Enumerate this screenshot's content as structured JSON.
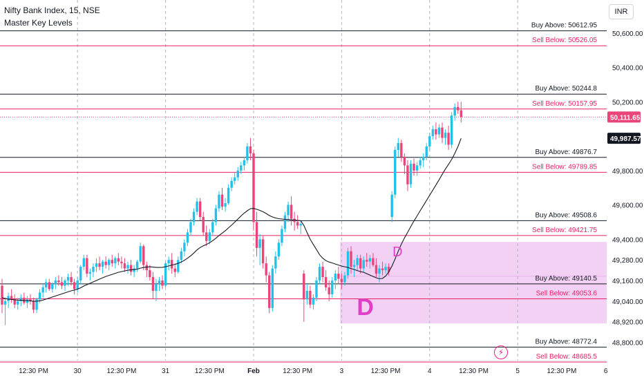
{
  "header": {
    "title": "Nifty Bank Index, 15, NSE",
    "indicator": "Master Key Levels"
  },
  "currency_badge": "INR",
  "alert_icon": "lightning-icon",
  "zone_labels": {
    "small": "D",
    "large": "D"
  },
  "colors": {
    "up": "#22c1e8",
    "down": "#e9457b",
    "buy_line": "#131722",
    "sell_line": "#e91e63",
    "zone": "#f3d1f4",
    "zone_text": "#e040c8",
    "ma": "#131722",
    "grid": "#b2b5be",
    "price_tag": "#e9457b",
    "ma_tag": "#131722"
  },
  "chart_data": {
    "type": "candlestick",
    "ylim": [
      48750,
      50720
    ],
    "y_ticks": [
      "50,600.00",
      "50,400.00",
      "50,200.00",
      "49,800.00",
      "49,600.00",
      "49,400.00",
      "49,280.00",
      "49,160.00",
      "49,040.00",
      "48,920.00",
      "48,800.00"
    ],
    "y_tick_values": [
      50600,
      50400,
      50200,
      49800,
      49600,
      49400,
      49280,
      49160,
      49040,
      48920,
      48800
    ],
    "x_ticks": [
      "12:30 PM",
      "30",
      "12:30 PM",
      "31",
      "12:30 PM",
      "Feb",
      "12:30 PM",
      "3",
      "12:30 PM",
      "4",
      "12:30 PM",
      "5",
      "12:30 PM",
      "6"
    ],
    "x_tick_bars": [
      10,
      24,
      38,
      52,
      66,
      80,
      94,
      108,
      122,
      136,
      150,
      164,
      178,
      192
    ],
    "day_separator_bars": [
      24,
      52,
      80,
      108,
      136,
      164
    ],
    "levels": [
      {
        "label": "Buy Above: 50612.95",
        "value": 50612.95,
        "kind": "buy"
      },
      {
        "label": "Sell Below: 50526.05",
        "value": 50526.05,
        "kind": "sell"
      },
      {
        "label": "Buy Above: 50244.8",
        "value": 50244.8,
        "kind": "buy"
      },
      {
        "label": "Sell Below: 50157.95",
        "value": 50157.95,
        "kind": "sell"
      },
      {
        "label": "Buy Above: 49876.7",
        "value": 49876.7,
        "kind": "buy"
      },
      {
        "label": "Sell Below: 49789.85",
        "value": 49789.85,
        "kind": "sell"
      },
      {
        "label": "Buy Above: 49508.6",
        "value": 49508.6,
        "kind": "buy"
      },
      {
        "label": "Sell Below: 49421.75",
        "value": 49421.75,
        "kind": "sell"
      },
      {
        "label": "Buy Above: 49140.5",
        "value": 49140.5,
        "kind": "buy"
      },
      {
        "label": "Sell Below: 49053.6",
        "value": 49053.6,
        "kind": "sell"
      },
      {
        "label": "Buy Above: 48772.4",
        "value": 48772.4,
        "kind": "buy"
      },
      {
        "label": "Sell Below: 48685.5",
        "value": 48685.5,
        "kind": "sell"
      }
    ],
    "zone": {
      "from_bar": 108,
      "to_bar": 196,
      "y_low": 48910,
      "y_high": 49385
    },
    "zone_divider": 49185,
    "last_price": {
      "label": "50,111.65",
      "value": 50111.65
    },
    "ma_value": {
      "label": "49,987.57",
      "value": 49987.57
    },
    "candles": [
      [
        49130,
        49170,
        48970,
        49020
      ],
      [
        49020,
        49060,
        48900,
        49040
      ],
      [
        49040,
        49090,
        49000,
        49070
      ],
      [
        49070,
        49110,
        49030,
        49050
      ],
      [
        49050,
        49080,
        49000,
        49020
      ],
      [
        49020,
        49060,
        48990,
        49040
      ],
      [
        49040,
        49080,
        49010,
        49060
      ],
      [
        49060,
        49090,
        49020,
        49030
      ],
      [
        49030,
        49070,
        49000,
        49050
      ],
      [
        49050,
        49080,
        49020,
        49040
      ],
      [
        49040,
        49060,
        48970,
        48990
      ],
      [
        48990,
        49060,
        48970,
        49050
      ],
      [
        49050,
        49110,
        49030,
        49090
      ],
      [
        49090,
        49140,
        49060,
        49120
      ],
      [
        49120,
        49170,
        49090,
        49150
      ],
      [
        49150,
        49170,
        49100,
        49110
      ],
      [
        49110,
        49150,
        49090,
        49140
      ],
      [
        49140,
        49180,
        49110,
        49160
      ],
      [
        49160,
        49190,
        49130,
        49150
      ],
      [
        49150,
        49180,
        49110,
        49130
      ],
      [
        49130,
        49170,
        49100,
        49160
      ],
      [
        49160,
        49200,
        49130,
        49180
      ],
      [
        49180,
        49210,
        49130,
        49150
      ],
      [
        49150,
        49170,
        49080,
        49110
      ],
      [
        49110,
        49180,
        49090,
        49160
      ],
      [
        49160,
        49250,
        49140,
        49240
      ],
      [
        49240,
        49310,
        49220,
        49290
      ],
      [
        49290,
        49310,
        49180,
        49200
      ],
      [
        49200,
        49230,
        49160,
        49210
      ],
      [
        49210,
        49260,
        49180,
        49240
      ],
      [
        49240,
        49290,
        49210,
        49260
      ],
      [
        49260,
        49300,
        49220,
        49240
      ],
      [
        49240,
        49280,
        49200,
        49270
      ],
      [
        49270,
        49300,
        49230,
        49250
      ],
      [
        49250,
        49290,
        49220,
        49280
      ],
      [
        49280,
        49310,
        49240,
        49260
      ],
      [
        49260,
        49300,
        49230,
        49290
      ],
      [
        49290,
        49320,
        49250,
        49270
      ],
      [
        49270,
        49300,
        49230,
        49260
      ],
      [
        49260,
        49290,
        49210,
        49230
      ],
      [
        49230,
        49270,
        49200,
        49250
      ],
      [
        49250,
        49280,
        49190,
        49210
      ],
      [
        49210,
        49250,
        49180,
        49230
      ],
      [
        49230,
        49280,
        49210,
        49270
      ],
      [
        49270,
        49380,
        49260,
        49360
      ],
      [
        49360,
        49370,
        49220,
        49250
      ],
      [
        49250,
        49270,
        49180,
        49220
      ],
      [
        49220,
        49250,
        49160,
        49180
      ],
      [
        49180,
        49210,
        49050,
        49100
      ],
      [
        49100,
        49170,
        49040,
        49140
      ],
      [
        49140,
        49180,
        49100,
        49160
      ],
      [
        49160,
        49190,
        49110,
        49130
      ],
      [
        49130,
        49270,
        49120,
        49260
      ],
      [
        49260,
        49300,
        49220,
        49280
      ],
      [
        49280,
        49320,
        49200,
        49230
      ],
      [
        49230,
        49260,
        49180,
        49210
      ],
      [
        49210,
        49300,
        49200,
        49280
      ],
      [
        49280,
        49350,
        49260,
        49330
      ],
      [
        49330,
        49400,
        49300,
        49380
      ],
      [
        49380,
        49460,
        49360,
        49440
      ],
      [
        49440,
        49520,
        49420,
        49500
      ],
      [
        49500,
        49580,
        49480,
        49560
      ],
      [
        49560,
        49640,
        49540,
        49620
      ],
      [
        49620,
        49640,
        49510,
        49530
      ],
      [
        49530,
        49560,
        49420,
        49440
      ],
      [
        49440,
        49480,
        49360,
        49390
      ],
      [
        49390,
        49460,
        49370,
        49440
      ],
      [
        49440,
        49520,
        49420,
        49500
      ],
      [
        49500,
        49600,
        49480,
        49580
      ],
      [
        49580,
        49680,
        49560,
        49660
      ],
      [
        49660,
        49700,
        49570,
        49590
      ],
      [
        49590,
        49640,
        49560,
        49610
      ],
      [
        49610,
        49720,
        49600,
        49700
      ],
      [
        49700,
        49760,
        49680,
        49740
      ],
      [
        49740,
        49790,
        49720,
        49760
      ],
      [
        49760,
        49820,
        49740,
        49800
      ],
      [
        49800,
        49850,
        49780,
        49830
      ],
      [
        49830,
        49880,
        49800,
        49860
      ],
      [
        49860,
        49960,
        49840,
        49940
      ],
      [
        49940,
        49990,
        49860,
        49900
      ],
      [
        49900,
        49920,
        49450,
        49500
      ],
      [
        49500,
        49560,
        49300,
        49350
      ],
      [
        49350,
        49430,
        49250,
        49400
      ],
      [
        49400,
        49420,
        49230,
        49260
      ],
      [
        49260,
        49300,
        49150,
        49190
      ],
      [
        49190,
        49210,
        48970,
        49000
      ],
      [
        49000,
        49250,
        48980,
        49230
      ],
      [
        49230,
        49330,
        49200,
        49300
      ],
      [
        49300,
        49400,
        49280,
        49380
      ],
      [
        49380,
        49480,
        49360,
        49460
      ],
      [
        49460,
        49560,
        49440,
        49540
      ],
      [
        49540,
        49620,
        49500,
        49600
      ],
      [
        49600,
        49650,
        49480,
        49520
      ],
      [
        49520,
        49560,
        49450,
        49500
      ],
      [
        49500,
        49540,
        49460,
        49480
      ],
      [
        49480,
        49510,
        49430,
        49490
      ],
      [
        49200,
        49220,
        48920,
        49050
      ],
      [
        49050,
        49140,
        49020,
        49100
      ],
      [
        49100,
        49130,
        49000,
        49020
      ],
      [
        49020,
        49080,
        48990,
        49060
      ],
      [
        49060,
        49180,
        49040,
        49160
      ],
      [
        49160,
        49260,
        49140,
        49240
      ],
      [
        49240,
        49270,
        49150,
        49180
      ],
      [
        49180,
        49220,
        49100,
        49120
      ],
      [
        49120,
        49160,
        49040,
        49080
      ],
      [
        49080,
        49180,
        49060,
        49160
      ],
      [
        49160,
        49220,
        49110,
        49200
      ],
      [
        49200,
        49240,
        49140,
        49170
      ],
      [
        49170,
        49200,
        49110,
        49150
      ],
      [
        49150,
        49210,
        49130,
        49190
      ],
      [
        49190,
        49350,
        49170,
        49330
      ],
      [
        49330,
        49360,
        49200,
        49240
      ],
      [
        49240,
        49280,
        49180,
        49250
      ],
      [
        49250,
        49310,
        49220,
        49290
      ],
      [
        49290,
        49310,
        49200,
        49230
      ],
      [
        49230,
        49300,
        49210,
        49280
      ],
      [
        49280,
        49320,
        49240,
        49270
      ],
      [
        49270,
        49310,
        49230,
        49290
      ],
      [
        49290,
        49320,
        49240,
        49250
      ],
      [
        49250,
        49290,
        49180,
        49200
      ],
      [
        49200,
        49250,
        49150,
        49230
      ],
      [
        49230,
        49270,
        49190,
        49220
      ],
      [
        49220,
        49260,
        49200,
        49240
      ],
      [
        49240,
        49260,
        49190,
        49210
      ],
      [
        49530,
        49680,
        49500,
        49660
      ],
      [
        49660,
        49940,
        49640,
        49920
      ],
      [
        49920,
        49990,
        49880,
        49960
      ],
      [
        49960,
        49980,
        49850,
        49880
      ],
      [
        49880,
        49900,
        49780,
        49830
      ],
      [
        49830,
        49860,
        49680,
        49720
      ],
      [
        49720,
        49860,
        49700,
        49840
      ],
      [
        49840,
        49870,
        49770,
        49800
      ],
      [
        49800,
        49850,
        49770,
        49830
      ],
      [
        49830,
        49880,
        49810,
        49860
      ],
      [
        49860,
        49900,
        49820,
        49880
      ],
      [
        49880,
        49960,
        49860,
        49940
      ],
      [
        49940,
        50020,
        49920,
        50000
      ],
      [
        50000,
        50060,
        49980,
        50040
      ],
      [
        50040,
        50080,
        49980,
        50010
      ],
      [
        50010,
        50070,
        49990,
        50050
      ],
      [
        50050,
        50080,
        49960,
        49990
      ],
      [
        49990,
        50040,
        49950,
        50020
      ],
      [
        50020,
        50060,
        49920,
        49950
      ],
      [
        49950,
        50140,
        49930,
        50120
      ],
      [
        50120,
        50190,
        50090,
        50170
      ],
      [
        50170,
        50200,
        50130,
        50150
      ],
      [
        50150,
        50200,
        50080,
        50111.65
      ]
    ],
    "ma": [
      49060,
      49055,
      49052,
      49050,
      49048,
      49046,
      49045,
      49044,
      49043,
      49042,
      49040,
      49040,
      49042,
      49046,
      49052,
      49058,
      49064,
      49070,
      49076,
      49082,
      49088,
      49094,
      49100,
      49104,
      49110,
      49118,
      49128,
      49136,
      49144,
      49152,
      49160,
      49168,
      49176,
      49184,
      49190,
      49196,
      49202,
      49208,
      49212,
      49216,
      49220,
      49222,
      49224,
      49226,
      49232,
      49236,
      49238,
      49240,
      49238,
      49236,
      49236,
      49237,
      49240,
      49245,
      49250,
      49254,
      49260,
      49268,
      49278,
      49290,
      49304,
      49320,
      49338,
      49352,
      49362,
      49370,
      49380,
      49392,
      49406,
      49422,
      49436,
      49450,
      49466,
      49482,
      49500,
      49518,
      49536,
      49552,
      49566,
      49578,
      49580,
      49574,
      49568,
      49560,
      49550,
      49538,
      49530,
      49524,
      49520,
      49518,
      49516,
      49516,
      49514,
      49512,
      49510,
      49508,
      49480,
      49440,
      49400,
      49370,
      49340,
      49310,
      49290,
      49276,
      49268,
      49262,
      49256,
      49250,
      49244,
      49240,
      49236,
      49230,
      49224,
      49218,
      49212,
      49208,
      49200,
      49192,
      49184,
      49176,
      49170,
      49172,
      49186,
      49210,
      49244,
      49286,
      49330,
      49372,
      49408,
      49440,
      49474,
      49506,
      49536,
      49566,
      49596,
      49626,
      49656,
      49686,
      49716,
      49746,
      49778,
      49808,
      49836,
      49864,
      49900,
      49940,
      49987.57
    ]
  }
}
